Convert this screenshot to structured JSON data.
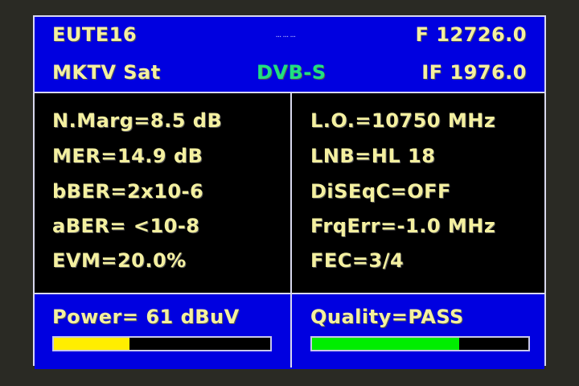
{
  "header": {
    "satellite": "EUTE16",
    "center_small": "... ... ...",
    "frequency": "F 12726.0",
    "provider": "MKTV Sat",
    "standard": "DVB-S",
    "if_freq": "IF 1976.0"
  },
  "left": [
    "N.Marg=8.5 dB",
    "MER=14.9 dB",
    "bBER=2x10-6",
    "aBER= <10-8",
    "EVM=20.0%"
  ],
  "right": [
    "L.O.=10750 MHz",
    "LNB=HL 18",
    "DiSEqC=OFF",
    "FrqErr=-1.0 MHz",
    "FEC=3/4"
  ],
  "power": {
    "label": "Power= 61 dBuV",
    "level_percent": 35,
    "color": "#ffee00"
  },
  "quality": {
    "label": "Quality=PASS",
    "level_percent": 68,
    "color": "#00ee00"
  },
  "colors": {
    "panel": "#0000e0",
    "text": "#f4f0a0",
    "standard": "#20e080"
  }
}
